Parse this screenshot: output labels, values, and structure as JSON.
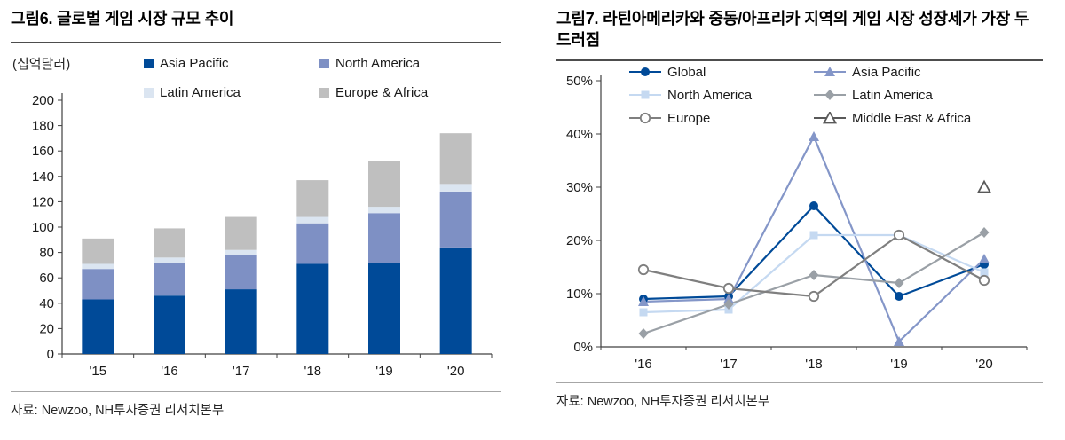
{
  "page": {
    "background": "#ffffff"
  },
  "figures": [
    {
      "id": "fig6",
      "title": "그림6. 글로벌 게임 시장 규모 추이",
      "unit_label": "(십억달러)",
      "source": "자료: Newzoo, NH투자증권 리서치본부"
    },
    {
      "id": "fig7",
      "title": "그림7. 라틴아메리카와 중동/아프리카 지역의 게임 시장 성장세가 가장 두드러짐",
      "source": "자료: Newzoo, NH투자증권 리서치본부"
    }
  ],
  "chart_data": [
    {
      "figure": "그림6",
      "type": "bar",
      "stacked": true,
      "title": "글로벌 게임 시장 규모 추이",
      "ylabel": "(십억달러)",
      "xlabel": "",
      "categories": [
        "'15",
        "'16",
        "'17",
        "'18",
        "'19",
        "'20"
      ],
      "series": [
        {
          "name": "Asia Pacific",
          "color": "#004a98",
          "values": [
            43,
            46,
            51,
            71,
            72,
            84
          ]
        },
        {
          "name": "North America",
          "color": "#7e90c4",
          "values": [
            24,
            26,
            27,
            32,
            39,
            44
          ]
        },
        {
          "name": "Latin America",
          "color": "#dbe5f1",
          "values": [
            4,
            4,
            4,
            5,
            5,
            6
          ]
        },
        {
          "name": "Europe & Africa",
          "color": "#bfbfbf",
          "values": [
            20,
            23,
            26,
            29,
            36,
            40
          ]
        }
      ],
      "stack_totals": [
        91,
        99,
        108,
        137,
        152,
        174
      ],
      "ylim": [
        0,
        200
      ],
      "ytick_step": 20,
      "yticks": [
        "0",
        "20",
        "40",
        "60",
        "80",
        "100",
        "120",
        "140",
        "160",
        "180",
        "200"
      ],
      "grid": false,
      "legend_position": "top"
    },
    {
      "figure": "그림7",
      "type": "line",
      "title": "라틴아메리카와 중동/아프리카 지역의 게임 시장 성장세가 가장 두드러짐",
      "xlabel": "",
      "ylabel": "",
      "unit": "percent",
      "categories": [
        "'16",
        "'17",
        "'18",
        "'19",
        "'20"
      ],
      "series": [
        {
          "name": "Global",
          "color": "#004a98",
          "marker": "circle-filled",
          "values": [
            9,
            9.5,
            26.5,
            9.5,
            15.5
          ]
        },
        {
          "name": "Asia Pacific",
          "color": "#8496c8",
          "marker": "triangle-filled",
          "values": [
            8.5,
            9,
            39.5,
            1,
            16.5
          ]
        },
        {
          "name": "North America",
          "color": "#c5d9f1",
          "marker": "square-filled",
          "values": [
            6.5,
            7,
            21,
            21,
            14
          ]
        },
        {
          "name": "Latin America",
          "color": "#9aa0a6",
          "marker": "diamond-filled",
          "values": [
            2.5,
            8,
            13.5,
            12,
            21.5
          ]
        },
        {
          "name": "Europe",
          "color": "#7f7f7f",
          "marker": "circle-open",
          "values": [
            14.5,
            11,
            9.5,
            21,
            12.5
          ]
        },
        {
          "name": "Middle East & Africa",
          "color": "#595959",
          "marker": "triangle-open",
          "values": [
            null,
            null,
            null,
            null,
            30
          ]
        }
      ],
      "ylim": [
        0,
        50
      ],
      "ytick_step": 10,
      "yticks": [
        "0%",
        "10%",
        "20%",
        "30%",
        "40%",
        "50%"
      ],
      "grid": false,
      "legend_position": "top"
    }
  ]
}
